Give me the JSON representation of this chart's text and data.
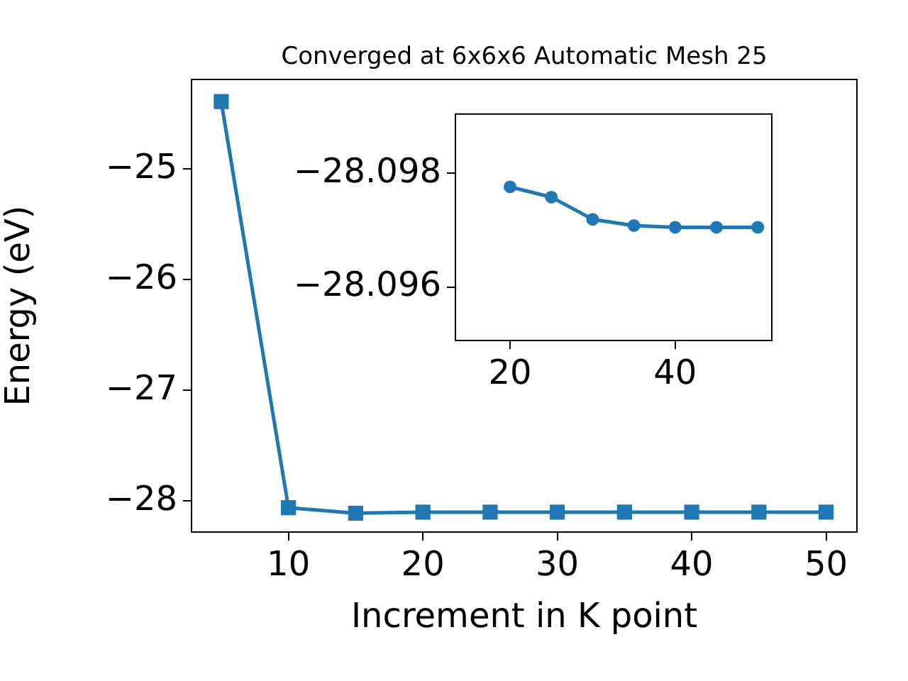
{
  "chart_data": [
    {
      "type": "line",
      "title": "Converged at 6x6x6 Automatic Mesh 25",
      "xlabel": "Increment in K point",
      "ylabel": "Energy (eV)",
      "x": [
        5,
        10,
        15,
        20,
        25,
        30,
        35,
        40,
        45,
        50
      ],
      "series": [
        {
          "color": "#1f77b4",
          "values": [
            -24.39,
            -28.06,
            -28.11,
            -28.1,
            -28.1,
            -28.1,
            -28.1,
            -28.1,
            -28.1,
            -28.1
          ]
        }
      ],
      "xlim": [
        2.79,
        52.29
      ],
      "xticks": [
        10,
        20,
        30,
        40,
        50
      ],
      "ylim": [
        -28.28,
        -24.19
      ],
      "yticks": [
        {
          "value": -28,
          "label": "−28"
        },
        {
          "value": -27,
          "label": "−27"
        },
        {
          "value": -26,
          "label": "−26"
        },
        {
          "value": -25,
          "label": "−25"
        }
      ],
      "legend": false,
      "marker": "square",
      "line_style": "solid"
    },
    {
      "type": "line",
      "x": [
        20,
        25,
        30,
        35,
        40,
        45,
        50
      ],
      "series": [
        {
          "color": "#1f77b4",
          "values": [
            -28.09776,
            -28.09758,
            -28.09719,
            -28.09708,
            -28.09705,
            -28.09705,
            -28.09705
          ]
        }
      ],
      "xlim": [
        13.38,
        51.7
      ],
      "xticks": [
        20,
        40
      ],
      "ylim": [
        -28.09506,
        -28.09904
      ],
      "yticks": [
        {
          "value": -28.098,
          "label": "−28.098"
        },
        {
          "value": -28.096,
          "label": "−28.096"
        }
      ],
      "legend": false,
      "marker": "circle",
      "line_style": "solid"
    }
  ]
}
